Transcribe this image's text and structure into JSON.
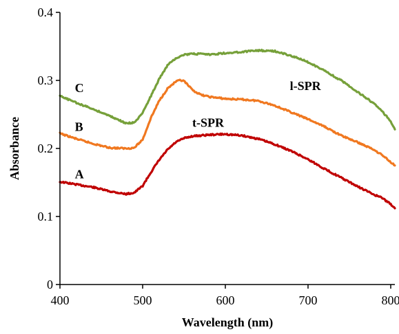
{
  "chart_data": {
    "type": "line",
    "xlabel": "Wavelength (nm)",
    "ylabel": "Absorbance",
    "xlim": [
      400,
      805
    ],
    "ylim": [
      0,
      0.4
    ],
    "x_ticks": [
      400,
      500,
      600,
      700,
      800
    ],
    "x_tick_labels": [
      "400",
      "500",
      "600",
      "700",
      "800"
    ],
    "y_ticks": [
      0,
      0.1,
      0.2,
      0.3,
      0.4
    ],
    "y_tick_labels": [
      "0",
      "0.1",
      "0.2",
      "0.3",
      "0.4"
    ],
    "grid": false,
    "legend": "none",
    "series": [
      {
        "name": "A",
        "color": "#c00000",
        "x": [
          400,
          420,
          440,
          460,
          480,
          490,
          500,
          510,
          520,
          530,
          540,
          550,
          560,
          570,
          580,
          600,
          620,
          640,
          660,
          680,
          700,
          720,
          740,
          760,
          780,
          790,
          800,
          805
        ],
        "y": [
          0.151,
          0.147,
          0.143,
          0.137,
          0.133,
          0.135,
          0.145,
          0.165,
          0.183,
          0.198,
          0.209,
          0.215,
          0.218,
          0.219,
          0.22,
          0.221,
          0.219,
          0.214,
          0.206,
          0.196,
          0.184,
          0.17,
          0.157,
          0.144,
          0.132,
          0.127,
          0.118,
          0.112
        ]
      },
      {
        "name": "B",
        "color": "#f07820",
        "x": [
          400,
          420,
          440,
          460,
          480,
          490,
          500,
          510,
          520,
          530,
          540,
          545,
          550,
          560,
          570,
          580,
          600,
          620,
          640,
          660,
          680,
          700,
          720,
          740,
          760,
          780,
          790,
          800,
          805
        ],
        "y": [
          0.222,
          0.214,
          0.207,
          0.201,
          0.2,
          0.201,
          0.213,
          0.245,
          0.27,
          0.288,
          0.298,
          0.3,
          0.299,
          0.286,
          0.279,
          0.276,
          0.273,
          0.272,
          0.27,
          0.263,
          0.253,
          0.243,
          0.232,
          0.219,
          0.209,
          0.198,
          0.19,
          0.18,
          0.175
        ]
      },
      {
        "name": "C",
        "color": "#76a03a",
        "x": [
          400,
          420,
          440,
          460,
          480,
          490,
          500,
          510,
          520,
          530,
          540,
          550,
          560,
          570,
          580,
          600,
          620,
          640,
          660,
          680,
          700,
          720,
          740,
          760,
          780,
          790,
          800,
          805
        ],
        "y": [
          0.277,
          0.267,
          0.258,
          0.248,
          0.237,
          0.238,
          0.252,
          0.277,
          0.302,
          0.322,
          0.333,
          0.338,
          0.339,
          0.339,
          0.338,
          0.34,
          0.342,
          0.344,
          0.343,
          0.336,
          0.327,
          0.314,
          0.3,
          0.283,
          0.266,
          0.254,
          0.24,
          0.228
        ]
      }
    ],
    "annotations": [
      {
        "text": "C",
        "x": 418,
        "y": 0.283
      },
      {
        "text": "B",
        "x": 418,
        "y": 0.226
      },
      {
        "text": "A",
        "x": 418,
        "y": 0.156
      },
      {
        "text": "t-SPR",
        "x": 560,
        "y": 0.232
      },
      {
        "text": "l-SPR",
        "x": 678,
        "y": 0.286
      }
    ]
  }
}
